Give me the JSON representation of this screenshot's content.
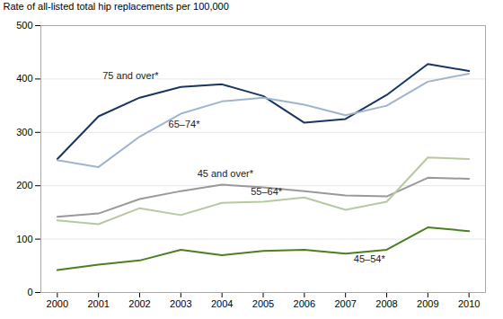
{
  "chart_data": {
    "type": "line",
    "x": [
      2000,
      2001,
      2002,
      2003,
      2004,
      2005,
      2006,
      2007,
      2008,
      2009,
      2010
    ],
    "series": [
      {
        "name": "75 and over*",
        "color": "#1a3560",
        "values": [
          250,
          330,
          365,
          385,
          390,
          368,
          318,
          325,
          370,
          428,
          415
        ]
      },
      {
        "name": "65–74*",
        "color": "#a0b4cc",
        "values": [
          248,
          235,
          292,
          335,
          358,
          365,
          352,
          332,
          350,
          395,
          410
        ]
      },
      {
        "name": "45 and over*",
        "color": "#999999",
        "values": [
          142,
          148,
          175,
          190,
          202,
          197,
          190,
          182,
          180,
          215,
          213
        ]
      },
      {
        "name": "55–64*",
        "color": "#b8c8a0",
        "values": [
          135,
          128,
          158,
          145,
          168,
          170,
          178,
          155,
          170,
          253,
          250
        ]
      },
      {
        "name": "45–54*",
        "color": "#4a8020",
        "values": [
          42,
          52,
          60,
          80,
          70,
          78,
          80,
          73,
          80,
          122,
          115
        ]
      }
    ],
    "annotations": [
      {
        "text": "75 and over*",
        "x": 2001.1,
        "y": 405
      },
      {
        "text": "65–74*",
        "x": 2002.7,
        "y": 315
      },
      {
        "text": "45 and over*",
        "x": 2003.4,
        "y": 222
      },
      {
        "text": "55–64*",
        "x": 2004.7,
        "y": 188
      },
      {
        "text": "45–54*",
        "x": 2007.2,
        "y": 62
      }
    ],
    "ylabel": "Rate of all-listed total hip replacements per 100,000",
    "ylim": [
      0,
      500
    ],
    "yticks": [
      0,
      100,
      200,
      300,
      400,
      500
    ],
    "xlim": [
      1999.6,
      2010.4
    ],
    "xticks": [
      2000,
      2001,
      2002,
      2003,
      2004,
      2005,
      2006,
      2007,
      2008,
      2009,
      2010
    ],
    "grid": true
  }
}
